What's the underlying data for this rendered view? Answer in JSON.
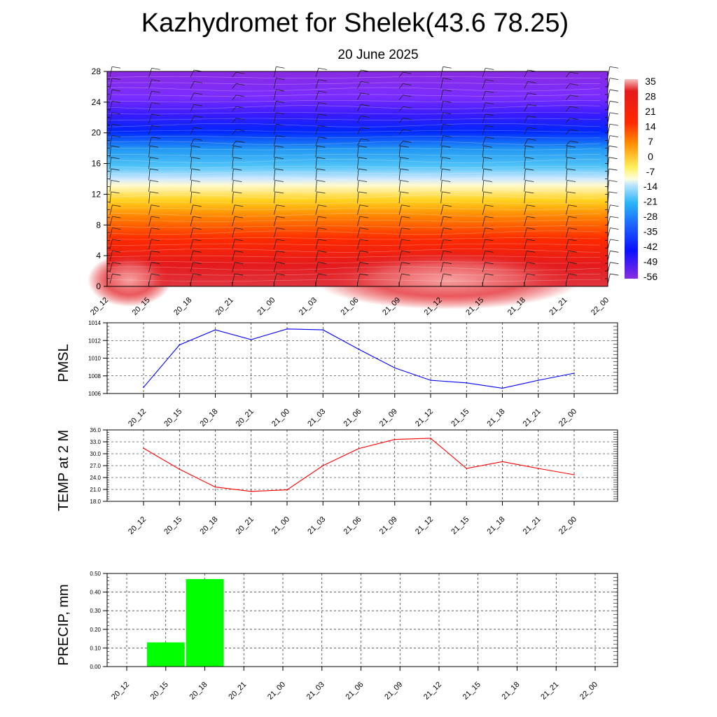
{
  "title": "Kazhydromet for Shelek(43.6 78.25)",
  "subtitle": "20 June 2025",
  "colorbar": {
    "labels": [
      "35",
      "28",
      "21",
      "14",
      "7",
      "0",
      "-7",
      "-14",
      "-21",
      "-28",
      "-35",
      "-42",
      "-49",
      "-56"
    ]
  },
  "chart_data": [
    {
      "type": "heatmap",
      "name": "cross-section",
      "categories": [
        "20_12",
        "20_15",
        "20_18",
        "20_21",
        "21_00",
        "21_03",
        "21_06",
        "21_09",
        "21_12",
        "21_15",
        "21_18",
        "21_21",
        "22_00"
      ],
      "y_ticks": [
        "0",
        "4",
        "8",
        "12",
        "16",
        "20",
        "24",
        "28"
      ],
      "ylim": [
        0,
        28
      ],
      "color_levels": [
        35,
        28,
        21,
        14,
        7,
        0,
        -7,
        -14,
        -21,
        -28,
        -35,
        -42,
        -49,
        -56
      ],
      "grid": false,
      "overlay": "wind barbs"
    },
    {
      "type": "line",
      "name": "pmsl",
      "ylabel": "PMSL",
      "categories": [
        "20_12",
        "20_15",
        "20_18",
        "20_21",
        "21_00",
        "21_03",
        "21_06",
        "21_09",
        "21_12",
        "21_15",
        "21_18",
        "21_21",
        "22_00"
      ],
      "values": [
        1006.7,
        1011.5,
        1013.2,
        1012.1,
        1013.3,
        1013.2,
        1011.0,
        1008.9,
        1007.5,
        1007.2,
        1006.6,
        1007.5,
        1008.3
      ],
      "y_ticks": [
        "1006",
        "1008",
        "1010",
        "1012",
        "1014"
      ],
      "ylim": [
        1006,
        1014
      ],
      "color": "#0000ff",
      "grid": true
    },
    {
      "type": "line",
      "name": "temp",
      "ylabel": "TEMP at 2 M",
      "categories": [
        "20_12",
        "20_15",
        "20_18",
        "20_21",
        "21_00",
        "21_03",
        "21_06",
        "21_09",
        "21_12",
        "21_15",
        "21_18",
        "21_21",
        "22_00"
      ],
      "values": [
        31.4,
        26.1,
        21.6,
        20.5,
        20.9,
        27.0,
        31.3,
        33.6,
        33.9,
        26.3,
        28.0,
        26.3,
        24.7
      ],
      "y_ticks": [
        "18.0",
        "21.0",
        "24.0",
        "27.0",
        "30.0",
        "33.0",
        "36.0"
      ],
      "ylim": [
        18,
        36
      ],
      "color": "#ff0000",
      "grid": true
    },
    {
      "type": "bar",
      "name": "precip",
      "ylabel": "PRECIP, mm",
      "categories": [
        "20_12",
        "20_15",
        "20_18",
        "20_21",
        "21_00",
        "21_03",
        "21_06",
        "21_09",
        "21_12",
        "21_15",
        "21_18",
        "21_21",
        "22_00"
      ],
      "values": [
        0,
        0.13,
        0.47,
        0,
        0,
        0,
        0,
        0,
        0,
        0,
        0,
        0,
        0
      ],
      "y_ticks": [
        "0.00",
        "0.10",
        "0.20",
        "0.30",
        "0.40",
        "0.50"
      ],
      "ylim": [
        0,
        0.5
      ],
      "color": "#00ff00",
      "grid": true
    }
  ]
}
